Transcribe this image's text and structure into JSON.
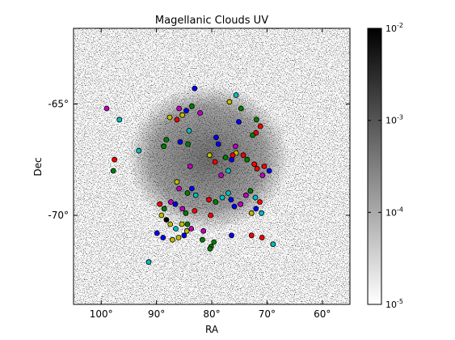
{
  "chart_data": {
    "type": "scatter",
    "title": "Magellanic Clouds UV",
    "xlabel": "RA",
    "ylabel": "Dec",
    "x_axis": {
      "range": [
        105,
        55
      ],
      "ticks": [
        100,
        90,
        80,
        70,
        60
      ],
      "tick_labels": [
        "100°",
        "90°",
        "80°",
        "70°",
        "60°"
      ]
    },
    "y_axis": {
      "range": [
        -74.0,
        -61.6
      ],
      "ticks": [
        -65,
        -70
      ],
      "tick_labels": [
        "-65°",
        "-70°"
      ]
    },
    "background": "grayscale UV density map (noise), log-scaled",
    "colorbar": {
      "scale": "log",
      "range": [
        1e-05,
        0.01
      ],
      "tick_exponents": [
        "-2",
        "-3",
        "-4",
        "-5"
      ],
      "colormap_top": "#000000",
      "colormap_bottom": "#ffffff"
    },
    "marker_colors": {
      "red": "#ff0000",
      "green": "#008000",
      "blue": "#0000ff",
      "cyan": "#00bfbf",
      "magenta": "#bf00bf",
      "yellow": "#bfbf00",
      "black": "#000000"
    },
    "points": [
      {
        "ra": 83.1,
        "dec": -64.3,
        "c": "blue"
      },
      {
        "ra": 85.9,
        "dec": -65.2,
        "c": "magenta"
      },
      {
        "ra": 84.6,
        "dec": -65.3,
        "c": "blue"
      },
      {
        "ra": 83.6,
        "dec": -65.1,
        "c": "green"
      },
      {
        "ra": 86.3,
        "dec": -65.7,
        "c": "red"
      },
      {
        "ra": 87.6,
        "dec": -65.6,
        "c": "yellow"
      },
      {
        "ra": 85.3,
        "dec": -65.5,
        "c": "yellow"
      },
      {
        "ra": 82.1,
        "dec": -65.4,
        "c": "magenta"
      },
      {
        "ra": 75.6,
        "dec": -64.6,
        "c": "cyan"
      },
      {
        "ra": 76.8,
        "dec": -64.9,
        "c": "yellow"
      },
      {
        "ra": 74.7,
        "dec": -65.2,
        "c": "green"
      },
      {
        "ra": 75.1,
        "dec": -65.8,
        "c": "blue"
      },
      {
        "ra": 71.9,
        "dec": -65.7,
        "c": "green"
      },
      {
        "ra": 71.2,
        "dec": -66.0,
        "c": "red"
      },
      {
        "ra": 72.0,
        "dec": -66.3,
        "c": "red"
      },
      {
        "ra": 72.6,
        "dec": -66.4,
        "c": "green"
      },
      {
        "ra": 84.1,
        "dec": -66.2,
        "c": "cyan"
      },
      {
        "ra": 88.2,
        "dec": -66.6,
        "c": "green"
      },
      {
        "ra": 88.7,
        "dec": -66.9,
        "c": "green"
      },
      {
        "ra": 85.7,
        "dec": -66.7,
        "c": "blue"
      },
      {
        "ra": 84.3,
        "dec": -66.8,
        "c": "green"
      },
      {
        "ra": 79.2,
        "dec": -66.5,
        "c": "blue"
      },
      {
        "ra": 78.8,
        "dec": -66.8,
        "c": "blue"
      },
      {
        "ra": 75.7,
        "dec": -66.9,
        "c": "magenta"
      },
      {
        "ra": 75.6,
        "dec": -67.2,
        "c": "yellow"
      },
      {
        "ra": 80.4,
        "dec": -67.3,
        "c": "yellow"
      },
      {
        "ra": 79.4,
        "dec": -67.6,
        "c": "red"
      },
      {
        "ra": 77.5,
        "dec": -67.4,
        "c": "green"
      },
      {
        "ra": 76.4,
        "dec": -67.5,
        "c": "blue"
      },
      {
        "ra": 76.2,
        "dec": -67.3,
        "c": "red"
      },
      {
        "ra": 74.3,
        "dec": -67.3,
        "c": "red"
      },
      {
        "ra": 73.6,
        "dec": -67.5,
        "c": "green"
      },
      {
        "ra": 72.3,
        "dec": -67.7,
        "c": "red"
      },
      {
        "ra": 71.8,
        "dec": -67.9,
        "c": "red"
      },
      {
        "ra": 70.5,
        "dec": -67.8,
        "c": "red"
      },
      {
        "ra": 69.6,
        "dec": -68.0,
        "c": "blue"
      },
      {
        "ra": 70.8,
        "dec": -68.2,
        "c": "magenta"
      },
      {
        "ra": 77.0,
        "dec": -68.0,
        "c": "cyan"
      },
      {
        "ra": 78.3,
        "dec": -68.2,
        "c": "magenta"
      },
      {
        "ra": 83.9,
        "dec": -67.8,
        "c": "magenta"
      },
      {
        "ra": 86.3,
        "dec": -68.5,
        "c": "yellow"
      },
      {
        "ra": 85.9,
        "dec": -68.8,
        "c": "magenta"
      },
      {
        "ra": 84.4,
        "dec": -69.0,
        "c": "green"
      },
      {
        "ra": 83.6,
        "dec": -68.8,
        "c": "blue"
      },
      {
        "ra": 82.9,
        "dec": -69.1,
        "c": "cyan"
      },
      {
        "ra": 80.5,
        "dec": -69.3,
        "c": "red"
      },
      {
        "ra": 79.3,
        "dec": -69.4,
        "c": "green"
      },
      {
        "ra": 78.1,
        "dec": -69.2,
        "c": "cyan"
      },
      {
        "ra": 77.0,
        "dec": -69.0,
        "c": "cyan"
      },
      {
        "ra": 76.5,
        "dec": -69.3,
        "c": "blue"
      },
      {
        "ra": 75.9,
        "dec": -69.6,
        "c": "blue"
      },
      {
        "ra": 74.8,
        "dec": -69.5,
        "c": "magenta"
      },
      {
        "ra": 73.8,
        "dec": -69.1,
        "c": "magenta"
      },
      {
        "ra": 73.0,
        "dec": -68.9,
        "c": "green"
      },
      {
        "ra": 72.1,
        "dec": -69.2,
        "c": "cyan"
      },
      {
        "ra": 71.3,
        "dec": -69.4,
        "c": "red"
      },
      {
        "ra": 72.0,
        "dec": -69.7,
        "c": "blue"
      },
      {
        "ra": 72.8,
        "dec": -69.9,
        "c": "yellow"
      },
      {
        "ra": 71.0,
        "dec": -69.9,
        "c": "cyan"
      },
      {
        "ra": 89.4,
        "dec": -69.5,
        "c": "red"
      },
      {
        "ra": 88.6,
        "dec": -69.7,
        "c": "green"
      },
      {
        "ra": 87.4,
        "dec": -69.4,
        "c": "magenta"
      },
      {
        "ra": 86.6,
        "dec": -69.5,
        "c": "blue"
      },
      {
        "ra": 85.3,
        "dec": -69.7,
        "c": "magenta"
      },
      {
        "ra": 84.7,
        "dec": -69.9,
        "c": "green"
      },
      {
        "ra": 83.1,
        "dec": -69.8,
        "c": "red"
      },
      {
        "ra": 89.1,
        "dec": -70.0,
        "c": "yellow"
      },
      {
        "ra": 88.2,
        "dec": -70.2,
        "c": "black"
      },
      {
        "ra": 87.5,
        "dec": -70.4,
        "c": "yellow"
      },
      {
        "ra": 86.5,
        "dec": -70.6,
        "c": "cyan"
      },
      {
        "ra": 85.4,
        "dec": -70.4,
        "c": "yellow"
      },
      {
        "ra": 84.4,
        "dec": -70.4,
        "c": "green"
      },
      {
        "ra": 83.7,
        "dec": -70.6,
        "c": "magenta"
      },
      {
        "ra": 81.5,
        "dec": -70.7,
        "c": "magenta"
      },
      {
        "ra": 80.2,
        "dec": -70.0,
        "c": "red"
      },
      {
        "ra": 89.9,
        "dec": -70.8,
        "c": "blue"
      },
      {
        "ra": 88.8,
        "dec": -71.0,
        "c": "blue"
      },
      {
        "ra": 87.1,
        "dec": -71.1,
        "c": "yellow"
      },
      {
        "ra": 86.0,
        "dec": -71.0,
        "c": "yellow"
      },
      {
        "ra": 85.0,
        "dec": -70.9,
        "c": "blue"
      },
      {
        "ra": 84.5,
        "dec": -70.7,
        "c": "yellow"
      },
      {
        "ra": 81.7,
        "dec": -71.1,
        "c": "green"
      },
      {
        "ra": 80.1,
        "dec": -71.4,
        "c": "green"
      },
      {
        "ra": 79.6,
        "dec": -71.2,
        "c": "green"
      },
      {
        "ra": 80.3,
        "dec": -71.5,
        "c": "green"
      },
      {
        "ra": 76.4,
        "dec": -70.9,
        "c": "blue"
      },
      {
        "ra": 72.8,
        "dec": -70.9,
        "c": "red"
      },
      {
        "ra": 70.9,
        "dec": -71.0,
        "c": "red"
      },
      {
        "ra": 68.9,
        "dec": -71.3,
        "c": "cyan"
      },
      {
        "ra": 99.0,
        "dec": -65.2,
        "c": "magenta"
      },
      {
        "ra": 96.7,
        "dec": -65.7,
        "c": "cyan"
      },
      {
        "ra": 97.6,
        "dec": -67.5,
        "c": "red"
      },
      {
        "ra": 97.8,
        "dec": -68.0,
        "c": "green"
      },
      {
        "ra": 93.2,
        "dec": -67.1,
        "c": "cyan"
      },
      {
        "ra": 91.4,
        "dec": -72.1,
        "c": "cyan"
      }
    ]
  }
}
